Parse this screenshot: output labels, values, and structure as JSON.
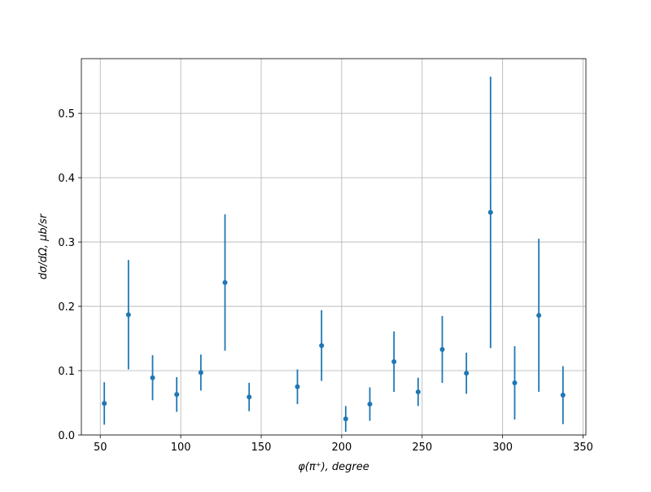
{
  "chart_data": {
    "type": "errorbar",
    "xlabel": "φ(π⁺), degree",
    "ylabel": "dσ/dΩ, μb/sr",
    "x": [
      52.5,
      67.5,
      82.5,
      97.5,
      112.5,
      127.5,
      142.5,
      172.5,
      187.5,
      202.5,
      217.5,
      232.5,
      247.5,
      262.5,
      277.5,
      292.5,
      307.5,
      322.5,
      337.5
    ],
    "values": [
      0.049,
      0.187,
      0.089,
      0.063,
      0.097,
      0.237,
      0.059,
      0.075,
      0.139,
      0.025,
      0.048,
      0.114,
      0.067,
      0.133,
      0.096,
      0.346,
      0.081,
      0.186,
      0.062
    ],
    "errors": [
      0.033,
      0.085,
      0.035,
      0.027,
      0.028,
      0.106,
      0.022,
      0.027,
      0.055,
      0.02,
      0.026,
      0.047,
      0.022,
      0.052,
      0.032,
      0.211,
      0.057,
      0.119,
      0.045
    ],
    "color": "#1f77b4",
    "xlim": [
      38.25,
      351.75
    ],
    "ylim": [
      0,
      0.585
    ],
    "xticks": [
      50,
      100,
      150,
      200,
      250,
      300,
      350
    ],
    "yticks": [
      {
        "value": 0,
        "label": "0.0"
      },
      0.1,
      0.2,
      0.3,
      0.4,
      0.5
    ],
    "grid": true
  }
}
